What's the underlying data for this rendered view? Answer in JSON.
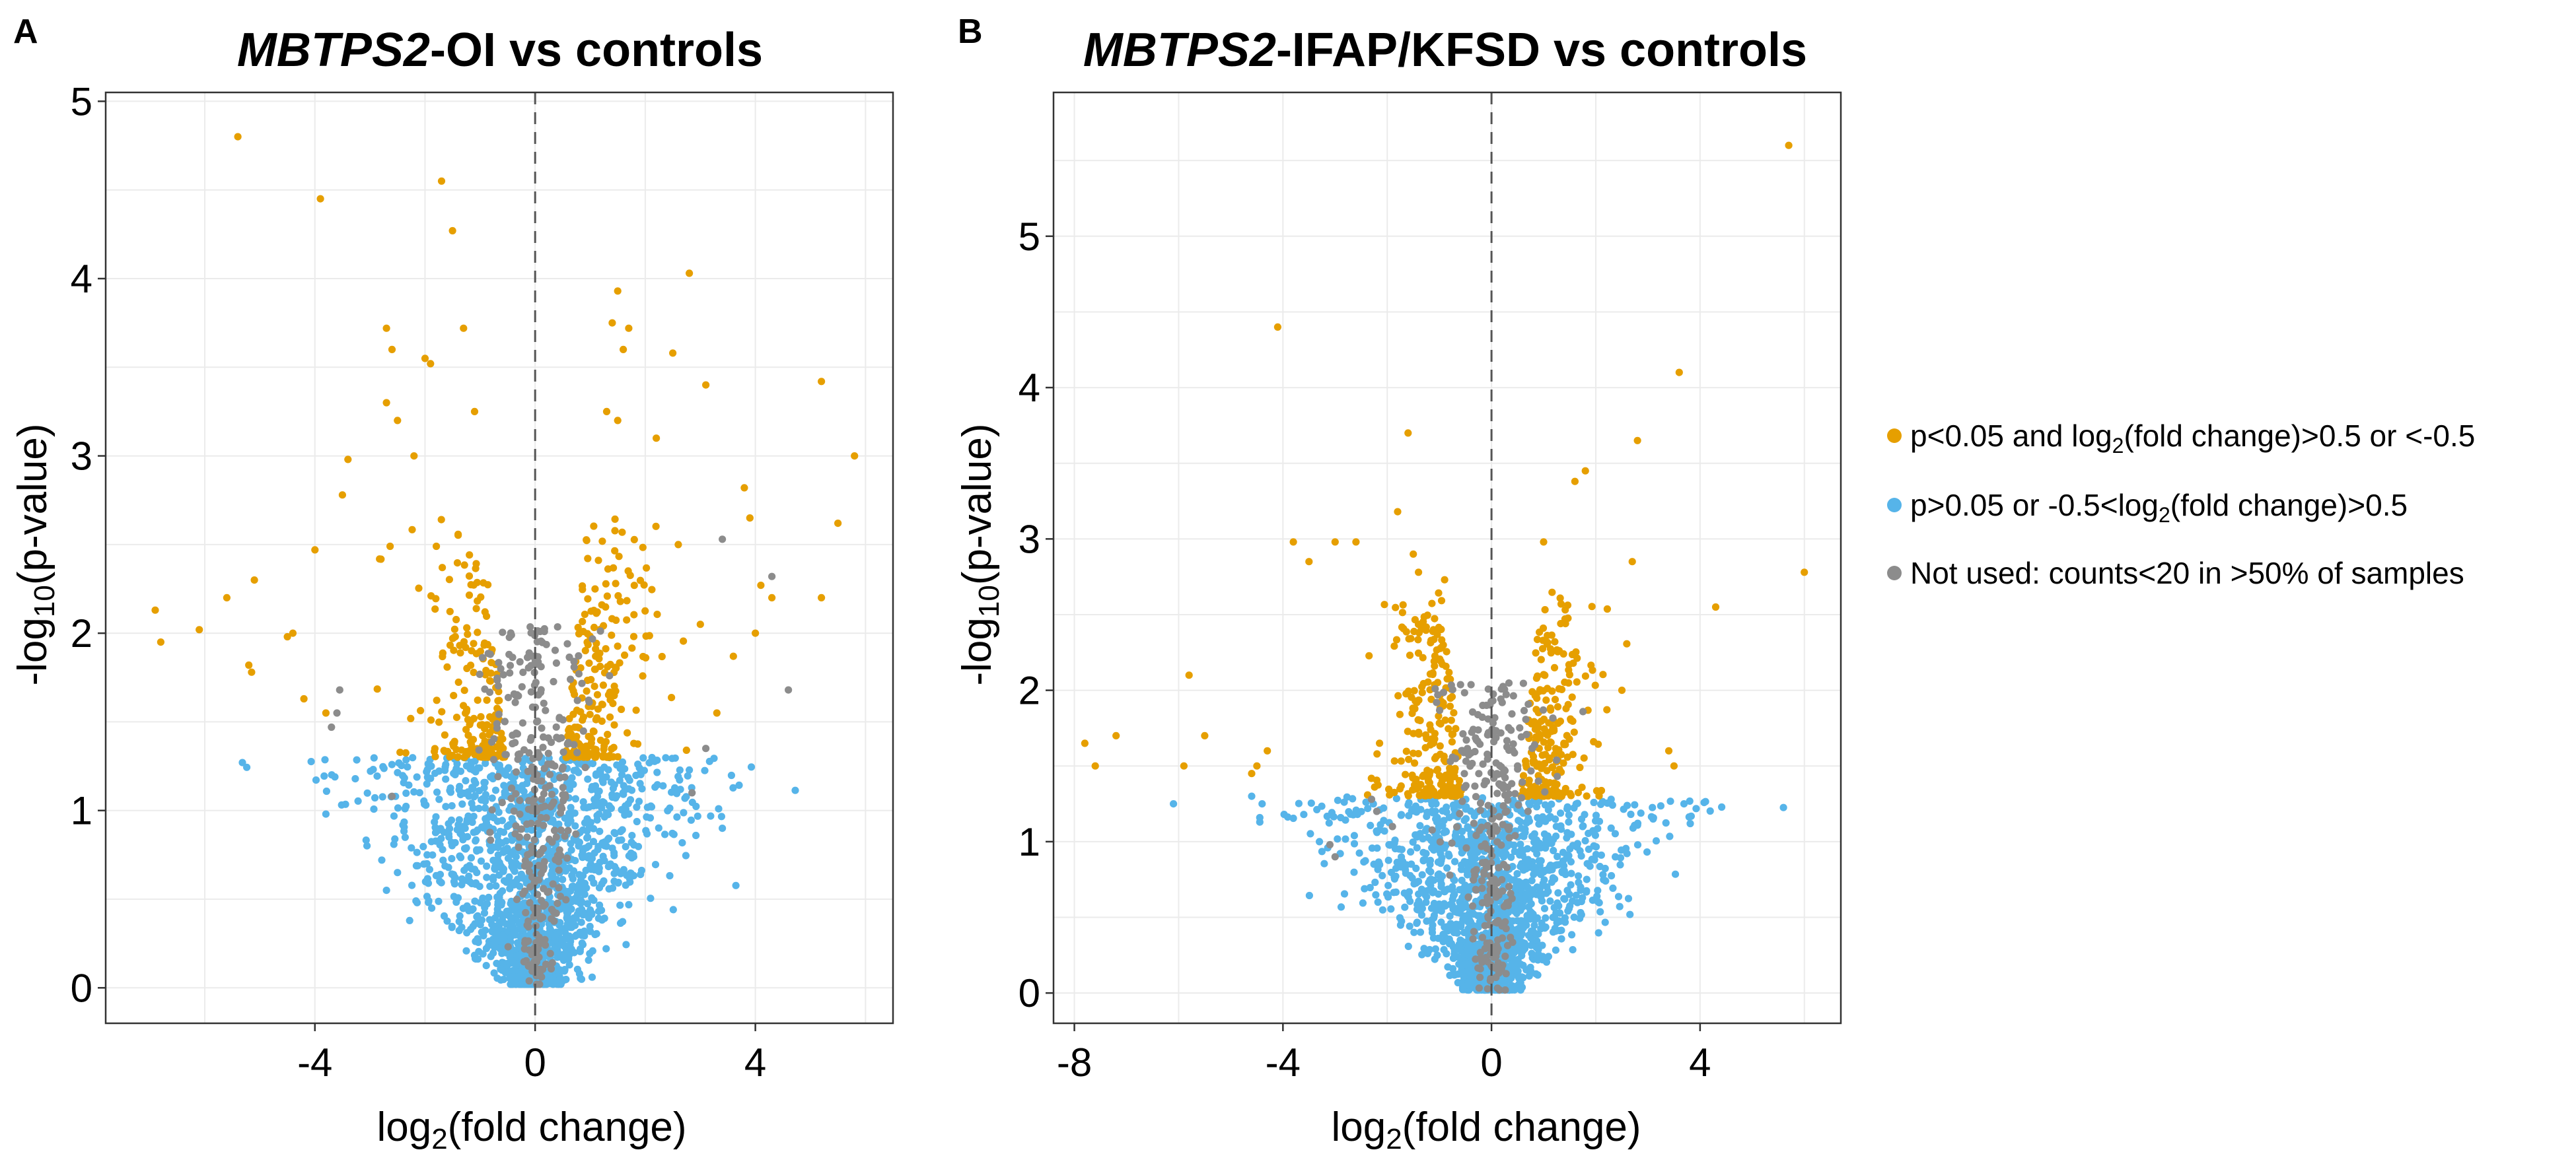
{
  "legend": [
    {
      "key": "sig",
      "label_parts": [
        "p<0.05 and log",
        "2",
        "(fold change)>0.5 or <-0.5"
      ],
      "color": "#E69F00"
    },
    {
      "key": "ns",
      "label_parts": [
        "p>0.05 or -0.5<log",
        "2",
        "(fold change)>0.5"
      ],
      "color": "#56B4E9"
    },
    {
      "key": "unused",
      "label_parts": [
        "Not used: counts<20 in >50% of samples"
      ],
      "color": "#8C8C8C"
    }
  ],
  "chart_data": [
    {
      "panel": "A",
      "type": "scatter",
      "title_italic": "MBTPS2",
      "title_rest": "-OI vs controls",
      "xlabel_parts": [
        "log",
        "2",
        "(fold change)"
      ],
      "ylabel_parts": [
        "-log",
        "10",
        "(p-value)"
      ],
      "xlim": [
        -7.8,
        6.5
      ],
      "ylim": [
        -0.2,
        5.05
      ],
      "xticks": [
        -4,
        0,
        4
      ],
      "xtick_labels": [
        "-4",
        "0",
        "4"
      ],
      "yticks": [
        0,
        1,
        2,
        3,
        4,
        5
      ],
      "ytick_labels": [
        "0",
        "1",
        "2",
        "3",
        "4",
        "5"
      ],
      "xgrid": [
        -6,
        -4,
        -2,
        0,
        2,
        4,
        6
      ],
      "ygrid": [
        0,
        0.5,
        1,
        1.5,
        2,
        2.5,
        3,
        3.5,
        4,
        4.5,
        5
      ],
      "sig_threshold": 1.3,
      "generated_points": {
        "seed": 11,
        "ns": 1600,
        "unused": 320,
        "sig_dense": 380
      },
      "sig_points": [
        [
          -5.4,
          4.8
        ],
        [
          -3.9,
          4.45
        ],
        [
          -1.7,
          4.55
        ],
        [
          -1.5,
          4.27
        ],
        [
          -1.3,
          3.72
        ],
        [
          -2.7,
          3.72
        ],
        [
          -2.6,
          3.6
        ],
        [
          -2.0,
          3.55
        ],
        [
          -1.9,
          3.52
        ],
        [
          -1.1,
          3.25
        ],
        [
          -2.7,
          3.3
        ],
        [
          -2.5,
          3.2
        ],
        [
          -2.2,
          3.0
        ],
        [
          -3.4,
          2.98
        ],
        [
          -3.5,
          2.78
        ],
        [
          -4.0,
          2.47
        ],
        [
          -6.9,
          2.13
        ],
        [
          -6.8,
          1.95
        ],
        [
          -6.1,
          2.02
        ],
        [
          -5.6,
          2.2
        ],
        [
          -5.1,
          2.3
        ],
        [
          -5.2,
          1.82
        ],
        [
          -5.15,
          1.78
        ],
        [
          -4.5,
          1.98
        ],
        [
          -4.4,
          2.0
        ],
        [
          -4.2,
          1.63
        ],
        [
          -3.8,
          1.55
        ],
        [
          1.5,
          3.93
        ],
        [
          2.8,
          4.03
        ],
        [
          1.4,
          3.75
        ],
        [
          1.7,
          3.72
        ],
        [
          1.6,
          3.6
        ],
        [
          2.5,
          3.58
        ],
        [
          3.1,
          3.4
        ],
        [
          1.3,
          3.25
        ],
        [
          1.5,
          3.2
        ],
        [
          2.2,
          3.1
        ],
        [
          5.2,
          3.42
        ],
        [
          5.8,
          3.0
        ],
        [
          5.5,
          2.62
        ],
        [
          3.8,
          2.82
        ],
        [
          3.9,
          2.65
        ],
        [
          4.1,
          2.27
        ],
        [
          4.3,
          2.2
        ],
        [
          5.2,
          2.2
        ],
        [
          4.0,
          2.0
        ],
        [
          3.6,
          1.87
        ],
        [
          3.3,
          1.55
        ],
        [
          3.0,
          2.05
        ],
        [
          2.6,
          2.5
        ]
      ],
      "unused_extra": [
        [
          4.6,
          1.68
        ],
        [
          3.4,
          2.53
        ],
        [
          4.3,
          2.32
        ],
        [
          -3.6,
          1.55
        ],
        [
          -3.7,
          1.47
        ],
        [
          -3.55,
          1.68
        ],
        [
          3.1,
          1.35
        ],
        [
          2.85,
          1.1
        ],
        [
          -2.6,
          1.08
        ]
      ],
      "ns_extra": [
        [
          -3.8,
          0.98
        ],
        [
          -2.7,
          0.55
        ],
        [
          -2.5,
          0.65
        ],
        [
          3.4,
          0.9
        ]
      ]
    },
    {
      "panel": "B",
      "type": "scatter",
      "title_italic": "MBTPS2",
      "title_rest": "-IFAP/KFSD vs controls",
      "xlabel_parts": [
        "log",
        "2",
        "(fold change)"
      ],
      "ylabel_parts": [
        "-log",
        "10",
        "(p-value)"
      ],
      "xlim": [
        -8.4,
        6.7
      ],
      "ylim": [
        -0.2,
        5.95
      ],
      "xticks": [
        -8,
        -4,
        0,
        4
      ],
      "xtick_labels": [
        "-8",
        "-4",
        "0",
        "4"
      ],
      "yticks": [
        0,
        1,
        2,
        3,
        4,
        5
      ],
      "ytick_labels": [
        "0",
        "1",
        "2",
        "3",
        "4",
        "5"
      ],
      "xgrid": [
        -8,
        -6,
        -4,
        -2,
        0,
        2,
        4,
        6
      ],
      "ygrid": [
        0,
        0.5,
        1,
        1.5,
        2,
        2.5,
        3,
        3.5,
        4,
        4.5,
        5,
        5.5
      ],
      "sig_threshold": 1.3,
      "generated_points": {
        "seed": 29,
        "ns": 1500,
        "unused": 280,
        "sig_dense": 460
      },
      "sig_points": [
        [
          5.7,
          5.6
        ],
        [
          3.6,
          4.1
        ],
        [
          -4.1,
          4.4
        ],
        [
          -1.6,
          3.7
        ],
        [
          2.8,
          3.65
        ],
        [
          1.8,
          3.45
        ],
        [
          1.6,
          3.38
        ],
        [
          -1.8,
          3.18
        ],
        [
          -3.8,
          2.98
        ],
        [
          -3.0,
          2.98
        ],
        [
          -2.6,
          2.98
        ],
        [
          -3.5,
          2.85
        ],
        [
          1.0,
          2.98
        ],
        [
          2.7,
          2.85
        ],
        [
          6.0,
          2.78
        ],
        [
          4.3,
          2.55
        ],
        [
          -1.5,
          2.9
        ],
        [
          -1.4,
          2.78
        ],
        [
          -0.9,
          2.73
        ],
        [
          -7.8,
          1.65
        ],
        [
          -7.6,
          1.5
        ],
        [
          -7.2,
          1.7
        ],
        [
          -5.9,
          1.5
        ],
        [
          -5.5,
          1.7
        ],
        [
          -5.8,
          2.1
        ],
        [
          -4.6,
          1.45
        ],
        [
          -4.5,
          1.5
        ],
        [
          -4.3,
          1.6
        ],
        [
          3.4,
          1.6
        ],
        [
          3.5,
          1.5
        ],
        [
          2.5,
          2.0
        ]
      ],
      "unused_extra": [
        [
          -2.3,
          1.28
        ],
        [
          -2.2,
          1.2
        ],
        [
          -1.9,
          1.1
        ],
        [
          -3.0,
          0.9
        ],
        [
          -3.1,
          0.98
        ],
        [
          0.7,
          1.2
        ],
        [
          0.9,
          1.4
        ],
        [
          0.5,
          1.5
        ]
      ],
      "ns_extra": [
        [
          -6.1,
          1.25
        ],
        [
          -4.6,
          1.3
        ],
        [
          -4.4,
          1.25
        ],
        [
          -3.3,
          1.0
        ],
        [
          3.1,
          1.15
        ]
      ]
    }
  ]
}
